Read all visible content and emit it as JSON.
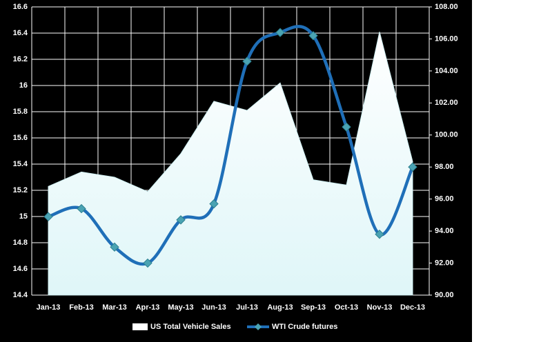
{
  "chart_data": {
    "type": "area-line",
    "categories": [
      "Jan-13",
      "Feb-13",
      "Mar-13",
      "Apr-13",
      "May-13",
      "Jun-13",
      "Jul-13",
      "Aug-13",
      "Sep-13",
      "Oct-13",
      "Nov-13",
      "Dec-13"
    ],
    "series": [
      {
        "name": "US Total Vehicle Sales",
        "type": "area",
        "color": "#eefbfc",
        "values": [
          15.23,
          15.34,
          15.3,
          15.19,
          15.48,
          15.88,
          15.81,
          16.02,
          15.28,
          15.24,
          16.41,
          15.42
        ]
      },
      {
        "name": "WTI Crude futures",
        "type": "line",
        "axis": "y2",
        "color": "#1f6fb8",
        "marker_color": "#4aa3b3",
        "values": [
          94.9,
          95.4,
          93.0,
          92.0,
          94.7,
          95.7,
          104.6,
          106.4,
          106.2,
          100.5,
          93.8,
          98.0
        ]
      }
    ],
    "ylim": [
      14.4,
      16.6
    ],
    "yticks": [
      14.4,
      14.6,
      14.8,
      15,
      15.2,
      15.4,
      15.6,
      15.8,
      16,
      16.2,
      16.4,
      16.6
    ],
    "y2lim": [
      90,
      108
    ],
    "y2ticks": [
      {
        "value": 90,
        "label": "90.00"
      },
      {
        "value": 92,
        "label": "92.00"
      },
      {
        "value": 94,
        "label": "94.00"
      },
      {
        "value": 96,
        "label": "96.00"
      },
      {
        "value": 98,
        "label": "98.00"
      },
      {
        "value": 100,
        "label": "100.00"
      },
      {
        "value": 102,
        "label": "102.00"
      },
      {
        "value": 104,
        "label": "104.00"
      },
      {
        "value": 106,
        "label": "106.00"
      },
      {
        "value": 108,
        "label": "108.00"
      }
    ],
    "grid": true,
    "legend": "bottom"
  }
}
